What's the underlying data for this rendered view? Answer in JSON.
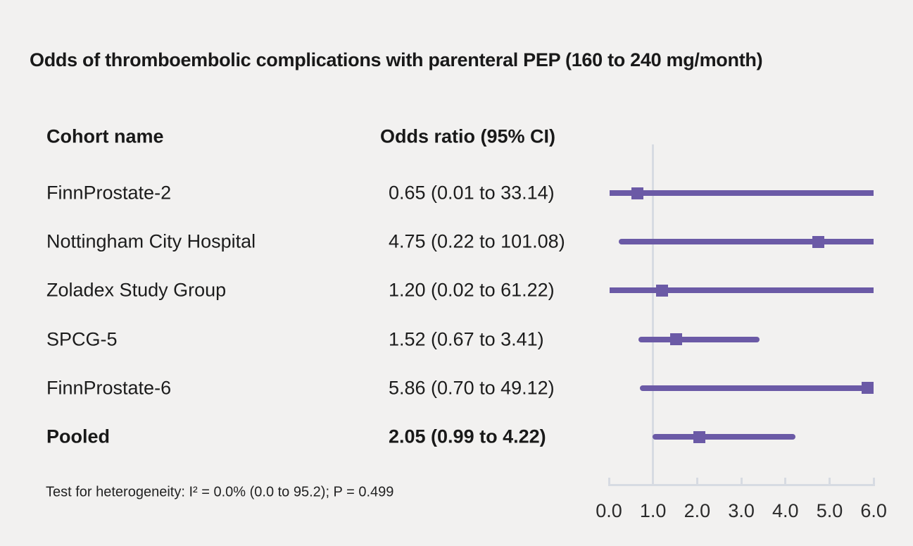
{
  "title": "Odds of thromboembolic complications with parenteral PEP (160 to 240 mg/month)",
  "table": {
    "headers": [
      "Cohort name",
      "Odds ratio (95% CI)"
    ]
  },
  "footnote": "Test for heterogeneity: I² = 0.0% (0.0 to 95.2); P = 0.499",
  "colors": {
    "marker": "#6b5aa6",
    "axis": "#d7dbe2",
    "background": "#f2f1f0",
    "text": "#191919"
  },
  "chart_data": {
    "type": "forest",
    "title": "Odds of thromboembolic complications with parenteral PEP (160 to 240 mg/month)",
    "xlabel": "",
    "x_axis": {
      "min": 0.0,
      "max": 6.0,
      "ticks": [
        0.0,
        1.0,
        2.0,
        3.0,
        4.0,
        5.0,
        6.0
      ],
      "tick_labels": [
        "0.0",
        "1.0",
        "2.0",
        "3.0",
        "4.0",
        "5.0",
        "6.0"
      ],
      "reference_line": 1.0,
      "grid": false
    },
    "series": [
      {
        "cohort": "FinnProstate-2",
        "or": 0.65,
        "ci_low": 0.01,
        "ci_high": 33.14,
        "or_label": "0.65 (0.01 to 33.14)",
        "pooled": false
      },
      {
        "cohort": "Nottingham City Hospital",
        "or": 4.75,
        "ci_low": 0.22,
        "ci_high": 101.08,
        "or_label": "4.75 (0.22 to 101.08)",
        "pooled": false
      },
      {
        "cohort": "Zoladex Study Group",
        "or": 1.2,
        "ci_low": 0.02,
        "ci_high": 61.22,
        "or_label": "1.20 (0.02 to 61.22)",
        "pooled": false
      },
      {
        "cohort": "SPCG-5",
        "or": 1.52,
        "ci_low": 0.67,
        "ci_high": 3.41,
        "or_label": "1.52 (0.67 to 3.41)",
        "pooled": false
      },
      {
        "cohort": "FinnProstate-6",
        "or": 5.86,
        "ci_low": 0.7,
        "ci_high": 49.12,
        "or_label": "5.86 (0.70 to 49.12)",
        "pooled": false
      },
      {
        "cohort": "Pooled",
        "or": 2.05,
        "ci_low": 0.99,
        "ci_high": 4.22,
        "or_label": "2.05 (0.99 to 4.22)",
        "pooled": true
      }
    ]
  }
}
